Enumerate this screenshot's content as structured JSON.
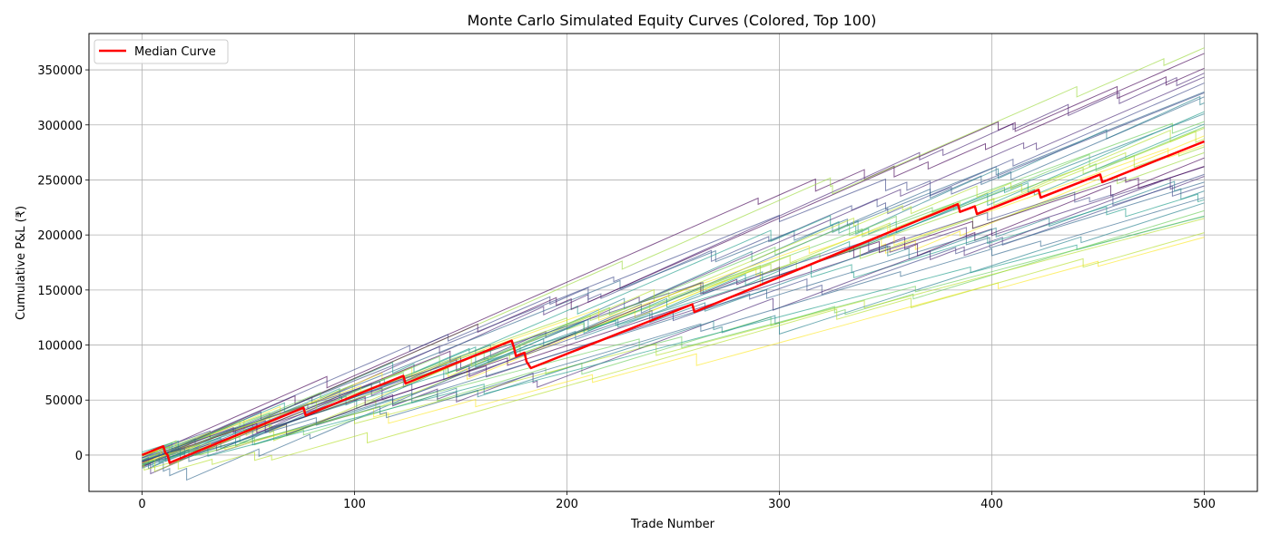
{
  "chart_data": {
    "type": "line",
    "title": "Monte Carlo Simulated Equity Curves (Colored, Top 100)",
    "xlabel": "Trade Number",
    "ylabel": "Cumulative P&L (₹)",
    "xlim": [
      -25,
      525
    ],
    "ylim": [
      -33000,
      383000
    ],
    "xticks": [
      0,
      100,
      200,
      300,
      400,
      500
    ],
    "yticks": [
      0,
      50000,
      100000,
      150000,
      200000,
      250000,
      300000,
      350000
    ],
    "grid": true,
    "legend": {
      "location": "top-left",
      "entries": [
        "Median Curve"
      ]
    },
    "median_color": "#ff0000",
    "median_curve": {
      "name": "Median Curve",
      "color": "#ff0000",
      "x": [
        0,
        10,
        11,
        12,
        13,
        76,
        77,
        123,
        124,
        174,
        175,
        176,
        180,
        181,
        182,
        183,
        259,
        260,
        384,
        385,
        392,
        393,
        422,
        423,
        451,
        452,
        500
      ],
      "y": [
        0,
        8000,
        2000,
        0,
        -7000,
        43000,
        36000,
        72000,
        65000,
        104000,
        98000,
        90000,
        93000,
        85000,
        82000,
        79000,
        137000,
        130000,
        228000,
        221000,
        226000,
        219000,
        241000,
        234000,
        255000,
        248000,
        285000
      ]
    },
    "simulated_curves_summary": {
      "count_shown": 100,
      "x_range": [
        0,
        500
      ],
      "final_values": [
        365000,
        347000,
        338000,
        330000,
        320000,
        312000,
        303000,
        297000,
        290000,
        280000,
        270000,
        262000,
        255000,
        248000,
        240000,
        232000,
        222000,
        215000,
        198000
      ],
      "start_values": [
        -13000,
        3000
      ],
      "palette": "viridis"
    }
  }
}
